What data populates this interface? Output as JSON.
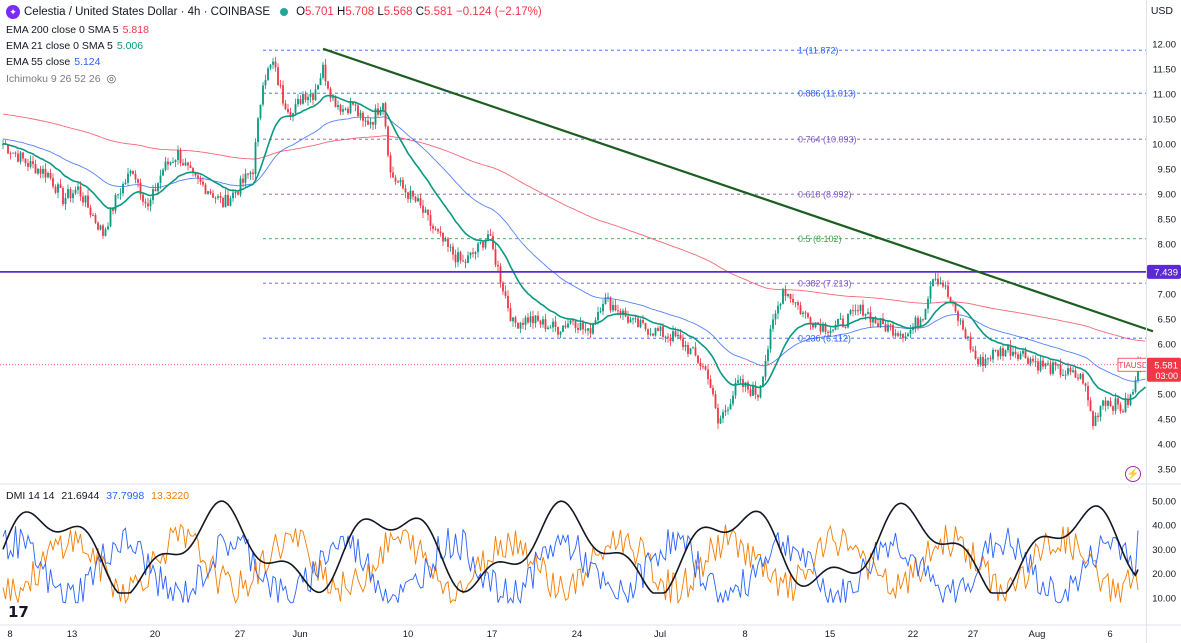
{
  "header": {
    "symbol_icon": "celestia-logo-icon",
    "title": "Celestia / United States Dollar · 4h · COINBASE",
    "ohlc": {
      "o": "5.701",
      "h": "5.708",
      "l": "5.568",
      "c": "5.581",
      "chg": "−0.124 (−2.17%)"
    }
  },
  "indicators": [
    {
      "label": "EMA 200 close 0 SMA 5",
      "value": "5.818",
      "color": "#f23645"
    },
    {
      "label": "EMA 21 close 0 SMA 5",
      "value": "5.006",
      "color": "#089981"
    },
    {
      "label": "EMA 55 close",
      "value": "5.124",
      "color": "#2962ff"
    },
    {
      "label": "Ichimoku 9 26 52 26",
      "value": "",
      "color": "#787b86"
    }
  ],
  "currency_label": "USD",
  "price_tag": {
    "symbol": "TIAUSD",
    "price": "5.581",
    "countdown": "03:00",
    "color": "#f23645"
  },
  "hline_tag": {
    "price": "7.439",
    "color": "#5b2ad6"
  },
  "colors": {
    "up": "#089981",
    "down": "#f23645",
    "ema21": "#089981",
    "ema55": "#2962ff",
    "ema200": "#f23645",
    "trendline": "#1b5e20",
    "hline": "#5b2ad6"
  },
  "chart_data": {
    "type": "candlestick",
    "price_axis": {
      "ticks": [
        "12.00",
        "11.50",
        "11.00",
        "10.50",
        "10.00",
        "9.50",
        "9.00",
        "8.50",
        "8.00",
        "7.50",
        "7.00",
        "6.50",
        "6.00",
        "5.50",
        "5.00",
        "4.50",
        "4.00",
        "3.50"
      ],
      "range": [
        3.5,
        12.0
      ]
    },
    "x_axis": {
      "ticks": [
        "8",
        "13",
        "20",
        "27",
        "Jun",
        "10",
        "17",
        "24",
        "Jul",
        "8",
        "15",
        "22",
        "27",
        "Aug",
        "6"
      ]
    },
    "price_anchors": [
      [
        0,
        10.0
      ],
      [
        10,
        9.6
      ],
      [
        18,
        9.4
      ],
      [
        24,
        8.9
      ],
      [
        30,
        9.1
      ],
      [
        40,
        8.2
      ],
      [
        46,
        9.0
      ],
      [
        52,
        9.5
      ],
      [
        58,
        8.7
      ],
      [
        64,
        9.5
      ],
      [
        70,
        9.8
      ],
      [
        76,
        9.3
      ],
      [
        82,
        9.1
      ],
      [
        88,
        8.8
      ],
      [
        94,
        9.1
      ],
      [
        100,
        9.5
      ],
      [
        104,
        11.3
      ],
      [
        108,
        11.6
      ],
      [
        112,
        10.9
      ],
      [
        116,
        10.6
      ],
      [
        120,
        11.0
      ],
      [
        124,
        11.0
      ],
      [
        128,
        11.5
      ],
      [
        132,
        10.9
      ],
      [
        136,
        10.7
      ],
      [
        140,
        10.8
      ],
      [
        144,
        10.4
      ],
      [
        148,
        10.5
      ],
      [
        152,
        10.9
      ],
      [
        155,
        9.4
      ],
      [
        160,
        9.1
      ],
      [
        166,
        8.8
      ],
      [
        172,
        8.3
      ],
      [
        178,
        7.9
      ],
      [
        184,
        7.6
      ],
      [
        190,
        7.9
      ],
      [
        194,
        8.2
      ],
      [
        198,
        7.5
      ],
      [
        204,
        6.4
      ],
      [
        210,
        6.5
      ],
      [
        216,
        6.4
      ],
      [
        222,
        6.3
      ],
      [
        228,
        6.5
      ],
      [
        234,
        6.2
      ],
      [
        240,
        6.9
      ],
      [
        246,
        6.7
      ],
      [
        252,
        6.4
      ],
      [
        258,
        6.3
      ],
      [
        264,
        6.2
      ],
      [
        270,
        6.1
      ],
      [
        276,
        5.8
      ],
      [
        282,
        5.4
      ],
      [
        286,
        4.4
      ],
      [
        290,
        4.8
      ],
      [
        294,
        5.2
      ],
      [
        298,
        5.1
      ],
      [
        302,
        5.0
      ],
      [
        308,
        6.4
      ],
      [
        312,
        7.1
      ],
      [
        316,
        6.9
      ],
      [
        320,
        6.6
      ],
      [
        326,
        6.4
      ],
      [
        332,
        6.3
      ],
      [
        338,
        6.5
      ],
      [
        344,
        6.7
      ],
      [
        350,
        6.4
      ],
      [
        356,
        6.3
      ],
      [
        362,
        6.2
      ],
      [
        368,
        6.6
      ],
      [
        372,
        7.4
      ],
      [
        376,
        7.2
      ],
      [
        380,
        6.7
      ],
      [
        384,
        6.3
      ],
      [
        390,
        5.6
      ],
      [
        396,
        5.8
      ],
      [
        402,
        5.9
      ],
      [
        408,
        5.8
      ],
      [
        414,
        5.6
      ],
      [
        420,
        5.5
      ],
      [
        426,
        5.4
      ],
      [
        432,
        5.3
      ],
      [
        436,
        4.4
      ],
      [
        440,
        4.9
      ],
      [
        444,
        4.8
      ],
      [
        448,
        4.7
      ],
      [
        452,
        5.0
      ],
      [
        454,
        5.6
      ]
    ],
    "fibonacci": [
      {
        "label": "1 (11.872)",
        "price": 11.872,
        "color": "#2962ff"
      },
      {
        "label": "0.886 (11.013)",
        "price": 11.013,
        "color": "#2962ff"
      },
      {
        "label": "0.764 (10.093)",
        "price": 10.093,
        "color": "#7e57c2"
      },
      {
        "label": "0.618 (8.992)",
        "price": 8.992,
        "color": "#7e57c2"
      },
      {
        "label": "0.5 (8.102)",
        "price": 8.102,
        "color": "#43a047"
      },
      {
        "label": "0.382 (7.213)",
        "price": 7.213,
        "color": "#7e57c2"
      },
      {
        "label": "0.236 (6.112)",
        "price": 6.112,
        "color": "#2962ff"
      }
    ],
    "horizontal_line": 7.439,
    "current_price": 5.581,
    "trendline": {
      "from": [
        128,
        11.9
      ],
      "to": [
        460,
        6.25
      ]
    },
    "dmi": {
      "label": "DMI 14 14",
      "values": [
        "21.6944",
        "37.7998",
        "13.3220"
      ],
      "colors": [
        "#131722",
        "#2962ff",
        "#f57c00"
      ],
      "axis_ticks": [
        "50.00",
        "40.00",
        "30.00",
        "20.00",
        "10.00"
      ],
      "range": [
        5,
        52
      ]
    }
  }
}
